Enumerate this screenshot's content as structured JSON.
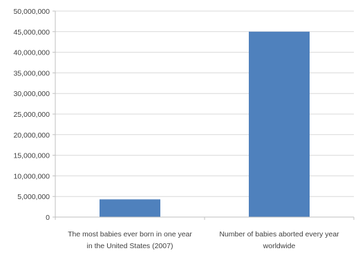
{
  "chart_data": {
    "type": "bar",
    "categories": [
      [
        "The most babies ever born in one year",
        "in the United States (2007)"
      ],
      [
        "Number of babies aborted every year",
        "worldwide"
      ]
    ],
    "values": [
      4300000,
      45000000
    ],
    "ylim": [
      0,
      50000000
    ],
    "yticks": [
      0,
      5000000,
      10000000,
      15000000,
      20000000,
      25000000,
      30000000,
      35000000,
      40000000,
      45000000,
      50000000
    ],
    "ytick_labels": [
      "0",
      "5,000,000",
      "10,000,000",
      "15,000,000",
      "20,000,000",
      "25,000,000",
      "30,000,000",
      "35,000,000",
      "40,000,000",
      "45,000,000",
      "50,000,000"
    ],
    "grid": true,
    "bar_color": "#4f81bd",
    "grid_color": "#d9d9d9",
    "axis_color": "#bfbfbf"
  }
}
